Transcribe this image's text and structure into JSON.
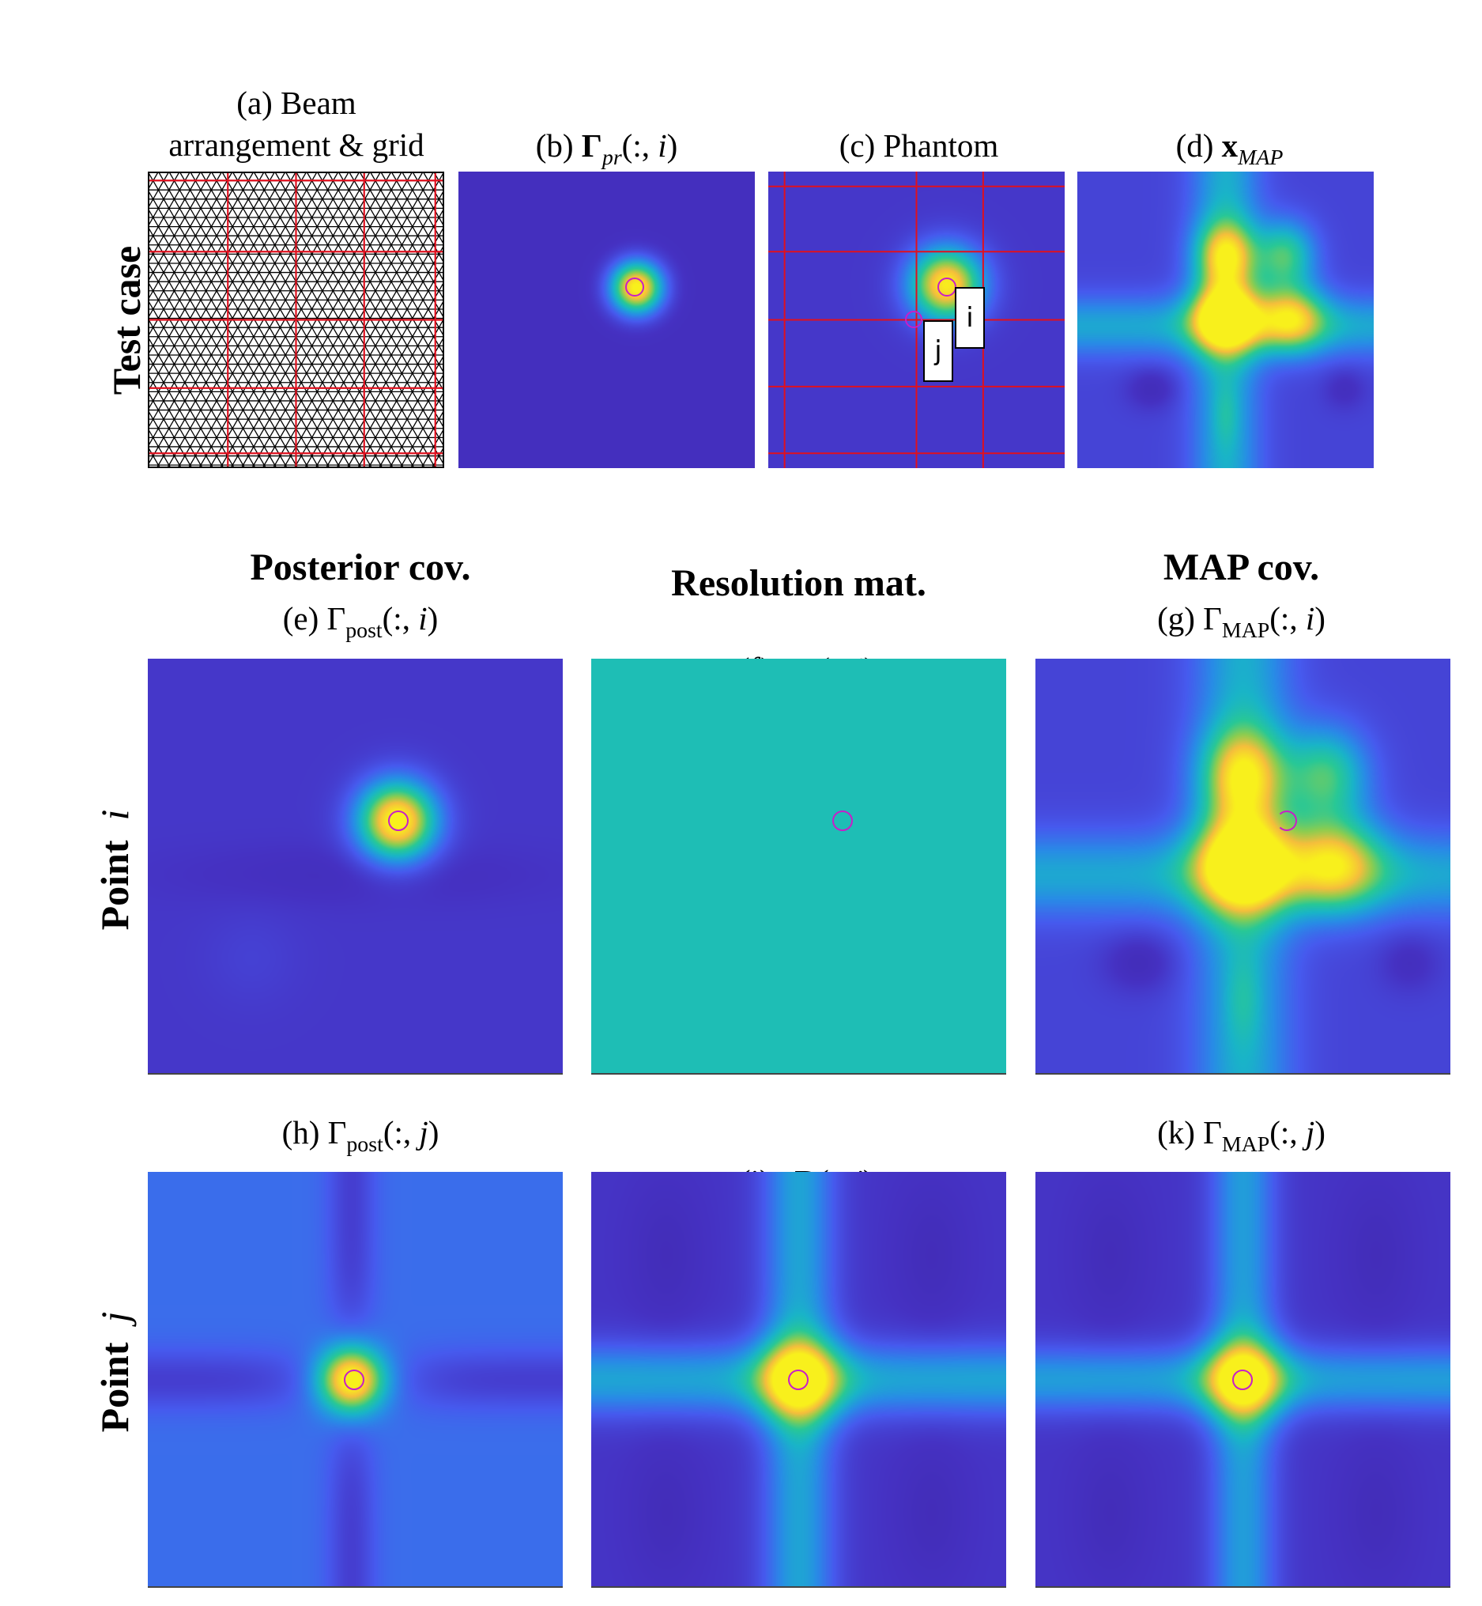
{
  "colors": {
    "parula_low": "#3e26a8",
    "parula_bg": "#4531c2",
    "parula_blue": "#4465f0",
    "parula_teal": "#1ebeb5",
    "parula_yellow": "#f5ec1a",
    "grid_red": "#e0101e",
    "marker_magenta": "#c81ec8"
  },
  "top_row": {
    "row_label": "Test case",
    "panels": [
      {
        "id": "a",
        "title_line1": "(a) Beam",
        "title_line2": "arrangement & grid"
      },
      {
        "id": "b",
        "prefix": "(b) ",
        "symbol": "Γ",
        "sub": "pr",
        "args": "(:, ",
        "var": "i",
        "close": ")"
      },
      {
        "id": "c",
        "title": "(c) Phantom",
        "tag_i": "i",
        "tag_j": "j"
      },
      {
        "id": "d",
        "prefix": "(d) ",
        "symbol": "x",
        "sub": "MAP"
      }
    ]
  },
  "column_headers": {
    "posterior": "Posterior cov.",
    "resolution": "Resolution mat.",
    "map": "MAP cov."
  },
  "row_i": {
    "label": "Point",
    "var": "i",
    "panels": [
      {
        "id": "e",
        "prefix": "(e) ",
        "symbol": "Γ",
        "sub": "post",
        "args": "(:, ",
        "var": "i",
        "close": ")"
      },
      {
        "id": "f",
        "prefix": "(f)   ",
        "symbol": "R",
        "args": "(:, ",
        "var": "i",
        "close": ")"
      },
      {
        "id": "g",
        "prefix": "(g) ",
        "symbol": "Γ",
        "sub": "MAP",
        "args": "(:, ",
        "var": "i",
        "close": ")"
      }
    ]
  },
  "row_j": {
    "label": "Point",
    "var": "j",
    "panels": [
      {
        "id": "h",
        "prefix": "(h) ",
        "symbol": "Γ",
        "sub": "post",
        "args": "(:, ",
        "var": "j",
        "close": ")"
      },
      {
        "id": "i",
        "prefix": "(i)   ",
        "symbol": "R",
        "args": "(:, ",
        "var": "j",
        "close": ")"
      },
      {
        "id": "k",
        "prefix": "(k) ",
        "symbol": "Γ",
        "sub": "MAP",
        "args": "(:, ",
        "var": "j",
        "close": ")"
      }
    ]
  }
}
